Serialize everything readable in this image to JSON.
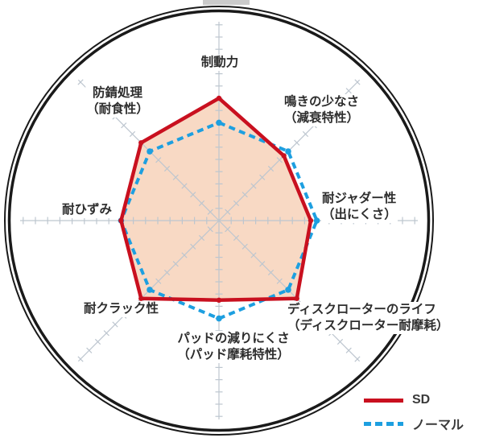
{
  "chart_data": {
    "type": "radar",
    "title": "",
    "axis_max": 10,
    "tick_interval": 1,
    "grid": {
      "style": "crosshair-ticks",
      "color": "#bdc6cf",
      "rim_color": "#1a1a1a",
      "background": "#ffffff"
    },
    "axes": [
      {
        "label": "制動力",
        "sublabel": ""
      },
      {
        "label": "鳴きの少なさ",
        "sublabel": "（減衰特性）"
      },
      {
        "label": "耐ジャダー性",
        "sublabel": "（出にくさ）"
      },
      {
        "label": "ディスクローターのライフ",
        "sublabel": "（ディスクローター耐摩耗）"
      },
      {
        "label": "パッドの減りにくさ",
        "sublabel": "（パッド摩耗特性）"
      },
      {
        "label": "耐クラック性",
        "sublabel": ""
      },
      {
        "label": "耐ひずみ",
        "sublabel": ""
      },
      {
        "label": "防錆処理",
        "sublabel": "（耐食性）"
      }
    ],
    "series": [
      {
        "name": "SD",
        "line_style": "solid",
        "color": "#c9101f",
        "fill": "#f8d9c4",
        "values": [
          10,
          7.5,
          7.5,
          9,
          6.5,
          9,
          8,
          9
        ]
      },
      {
        "name": "ノーマル",
        "line_style": "dashed",
        "color": "#1d9fe0",
        "fill": "none",
        "values": [
          8,
          8,
          8,
          8,
          8,
          8,
          8,
          8
        ]
      }
    ],
    "legend_position": "bottom-right"
  }
}
